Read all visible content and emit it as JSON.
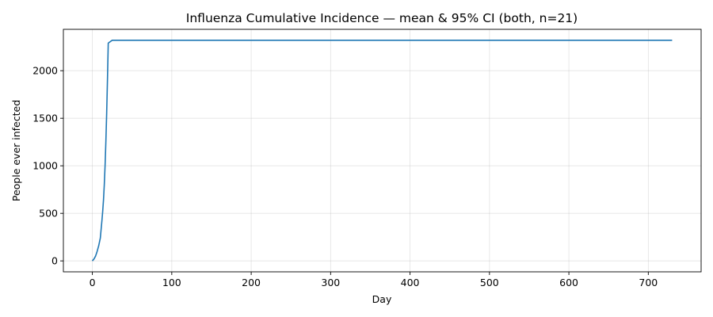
{
  "chart_data": {
    "type": "line",
    "title": "Influenza Cumulative Incidence — mean & 95% CI (both, n=21)",
    "xlabel": "Day",
    "ylabel": "People ever infected",
    "xlim": [
      -36.5,
      766.5
    ],
    "ylim": [
      -115,
      2435
    ],
    "xticks": [
      0,
      100,
      200,
      300,
      400,
      500,
      600,
      700
    ],
    "yticks": [
      0,
      500,
      1000,
      1500,
      2000
    ],
    "grid": true,
    "legend": "none",
    "series": [
      {
        "color": "#1f77b4",
        "x": [
          0,
          2,
          4,
          6,
          8,
          10,
          11,
          12,
          13,
          14,
          15,
          16,
          17,
          18,
          19,
          20,
          25,
          50,
          100,
          200,
          300,
          400,
          500,
          600,
          700,
          730
        ],
        "y": [
          0,
          20,
          50,
          100,
          160,
          240,
          330,
          420,
          520,
          640,
          800,
          1000,
          1250,
          1550,
          1900,
          2290,
          2320,
          2320,
          2320,
          2320,
          2320,
          2320,
          2320,
          2320,
          2320,
          2320
        ]
      }
    ]
  }
}
